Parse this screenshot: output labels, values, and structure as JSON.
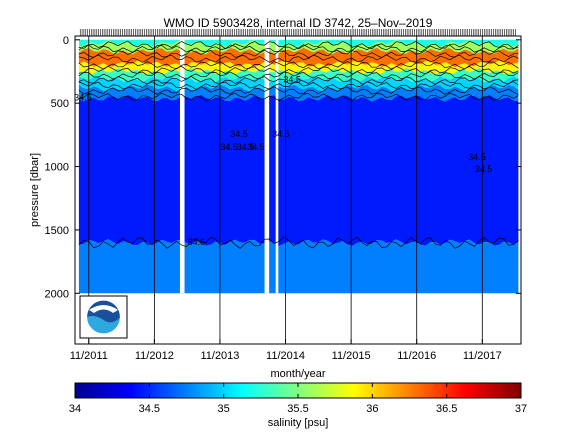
{
  "chart_data": {
    "type": "heatmap",
    "title": "WMO ID 5903428, internal ID 3742, 25–Nov–2019",
    "xlabel": "month/year",
    "ylabel": "pressure [dbar]",
    "x_ticks": [
      "11/2011",
      "11/2012",
      "11/2013",
      "11/2014",
      "11/2015",
      "11/2016",
      "11/2017"
    ],
    "x_tick_times": [
      2011.83,
      2012.83,
      2013.83,
      2014.83,
      2015.83,
      2016.83,
      2017.83
    ],
    "xlim": [
      2011.62,
      2018.42
    ],
    "y_ticks": [
      0,
      500,
      1000,
      1500,
      2000
    ],
    "ylim": [
      2400,
      -30
    ],
    "y_reversed": true,
    "profile_max_pressure": 2000,
    "colorbar": {
      "label": "salinity [psu]",
      "range": [
        34,
        37
      ],
      "ticks": [
        34,
        34.5,
        35,
        35.5,
        36,
        36.5,
        37
      ],
      "colors": [
        "#00008f",
        "#0000ff",
        "#0080ff",
        "#00ffff",
        "#80ff80",
        "#ffff00",
        "#ff8000",
        "#ff0000",
        "#800000"
      ]
    },
    "layers": [
      {
        "pressure_top": 0,
        "pressure_bottom": 30,
        "salinity": 35.2
      },
      {
        "pressure_top": 30,
        "pressure_bottom": 90,
        "salinity": 35.6
      },
      {
        "pressure_top": 90,
        "pressure_bottom": 190,
        "salinity": 36.3
      },
      {
        "pressure_top": 190,
        "pressure_bottom": 250,
        "salinity": 35.9
      },
      {
        "pressure_top": 250,
        "pressure_bottom": 310,
        "salinity": 35.3
      },
      {
        "pressure_top": 310,
        "pressure_bottom": 380,
        "salinity": 35.0
      },
      {
        "pressure_top": 380,
        "pressure_bottom": 460,
        "salinity": 34.75
      },
      {
        "pressure_top": 460,
        "pressure_bottom": 1600,
        "salinity": 34.45
      },
      {
        "pressure_top": 1600,
        "pressure_bottom": 2000,
        "salinity": 34.75
      }
    ],
    "data_gaps": [
      {
        "start": 2013.22,
        "end": 2013.29
      },
      {
        "start": 2014.51,
        "end": 2014.58
      },
      {
        "start": 2014.68,
        "end": 2014.72
      }
    ],
    "contour_labels": [
      "34.6",
      "34.5",
      "34.5",
      "34.5",
      "34.5",
      "34.5",
      "34.5",
      "34.5",
      "34.5",
      "34.6"
    ],
    "logo": "NOAA"
  }
}
